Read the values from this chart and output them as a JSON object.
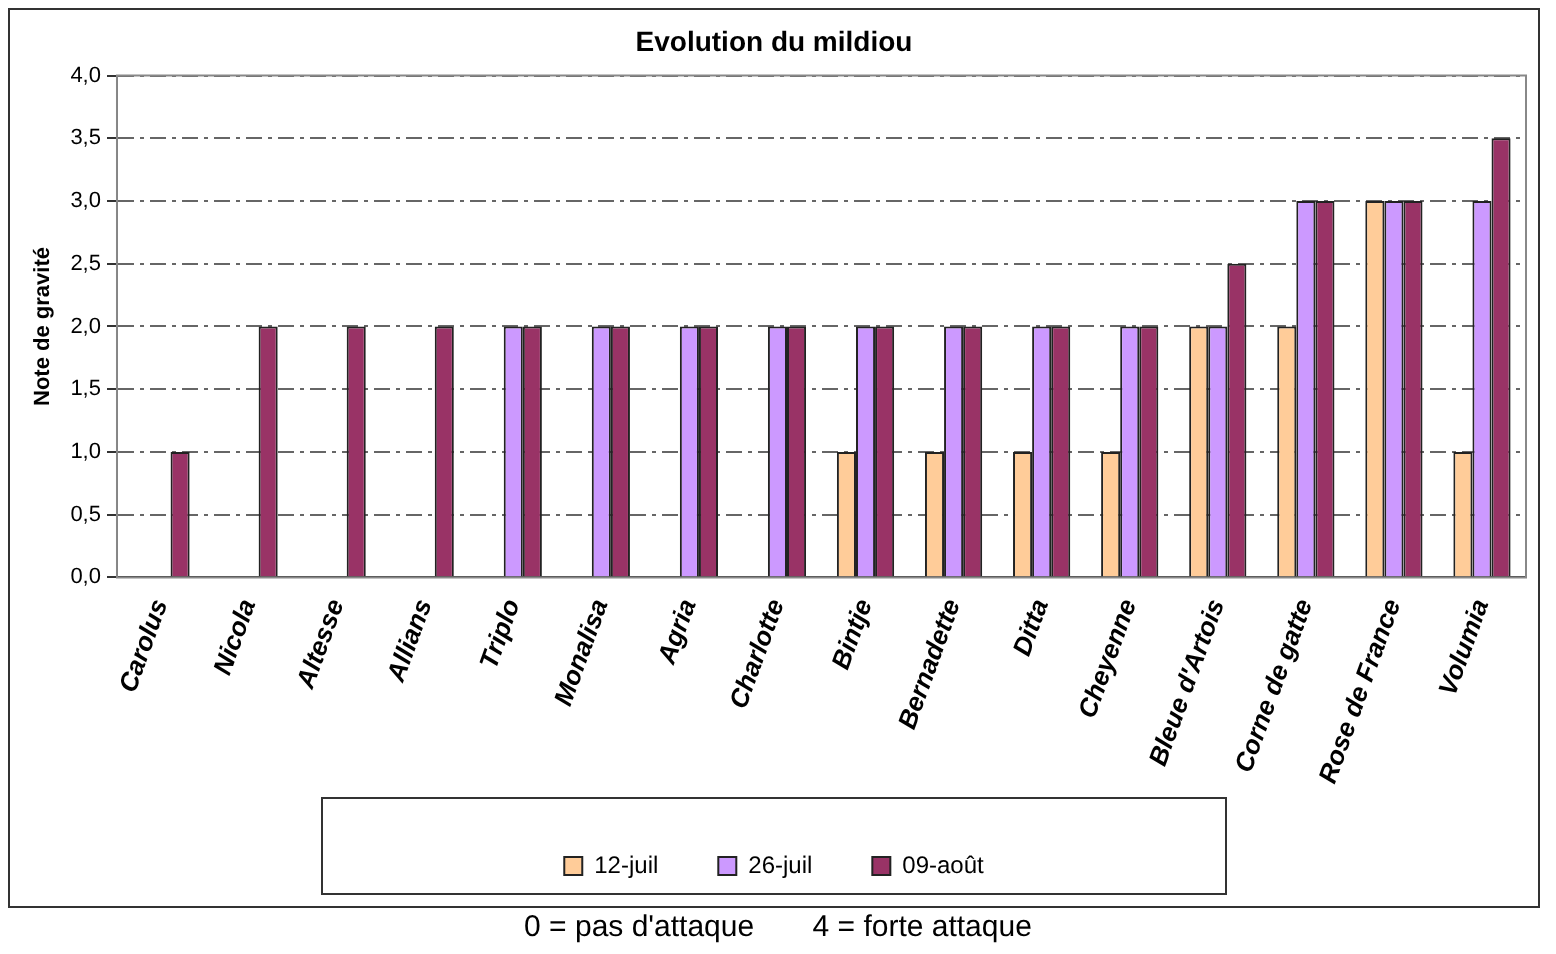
{
  "chart_data": {
    "type": "bar",
    "title": "Evolution du mildiou",
    "ylabel": "Note de gravité",
    "categories": [
      "Carolus",
      "Nicola",
      "Altesse",
      "Allians",
      "Triplo",
      "Monalisa",
      "Agria",
      "Charlotte",
      "Bintje",
      "Bernadette",
      "Ditta",
      "Cheyenne",
      "Bleue d'Artois",
      "Corne de gatte",
      "Rose de France",
      "Volumia"
    ],
    "series": [
      {
        "name": "12-juil",
        "color": "#ffcc99",
        "values": [
          0,
          0,
          0,
          0,
          0,
          0,
          0,
          0,
          1,
          1,
          1,
          1,
          2,
          2,
          3,
          1
        ]
      },
      {
        "name": "26-juil",
        "color": "#cc99ff",
        "values": [
          0,
          0,
          0,
          0,
          2,
          2,
          2,
          2,
          2,
          2,
          2,
          2,
          2,
          3,
          3,
          3
        ]
      },
      {
        "name": "09-août",
        "color": "#993366",
        "values": [
          1,
          2,
          2,
          2,
          2,
          2,
          2,
          2,
          2,
          2,
          2,
          2,
          2.5,
          3,
          3,
          3.5
        ]
      }
    ],
    "ylim": [
      0,
      4
    ],
    "yticks": [
      {
        "value": 0,
        "label": "0,0"
      },
      {
        "value": 0.5,
        "label": "0,5"
      },
      {
        "value": 1,
        "label": "1,0"
      },
      {
        "value": 1.5,
        "label": "1,5"
      },
      {
        "value": 2,
        "label": "2,0"
      },
      {
        "value": 2.5,
        "label": "2,5"
      },
      {
        "value": 3,
        "label": "3,0"
      },
      {
        "value": 3.5,
        "label": "3,5"
      },
      {
        "value": 4,
        "label": "4,0"
      }
    ],
    "grid": "y",
    "legend": "bottom",
    "annotations": [
      "0 = pas d'attaque       4 = forte attaque"
    ]
  }
}
